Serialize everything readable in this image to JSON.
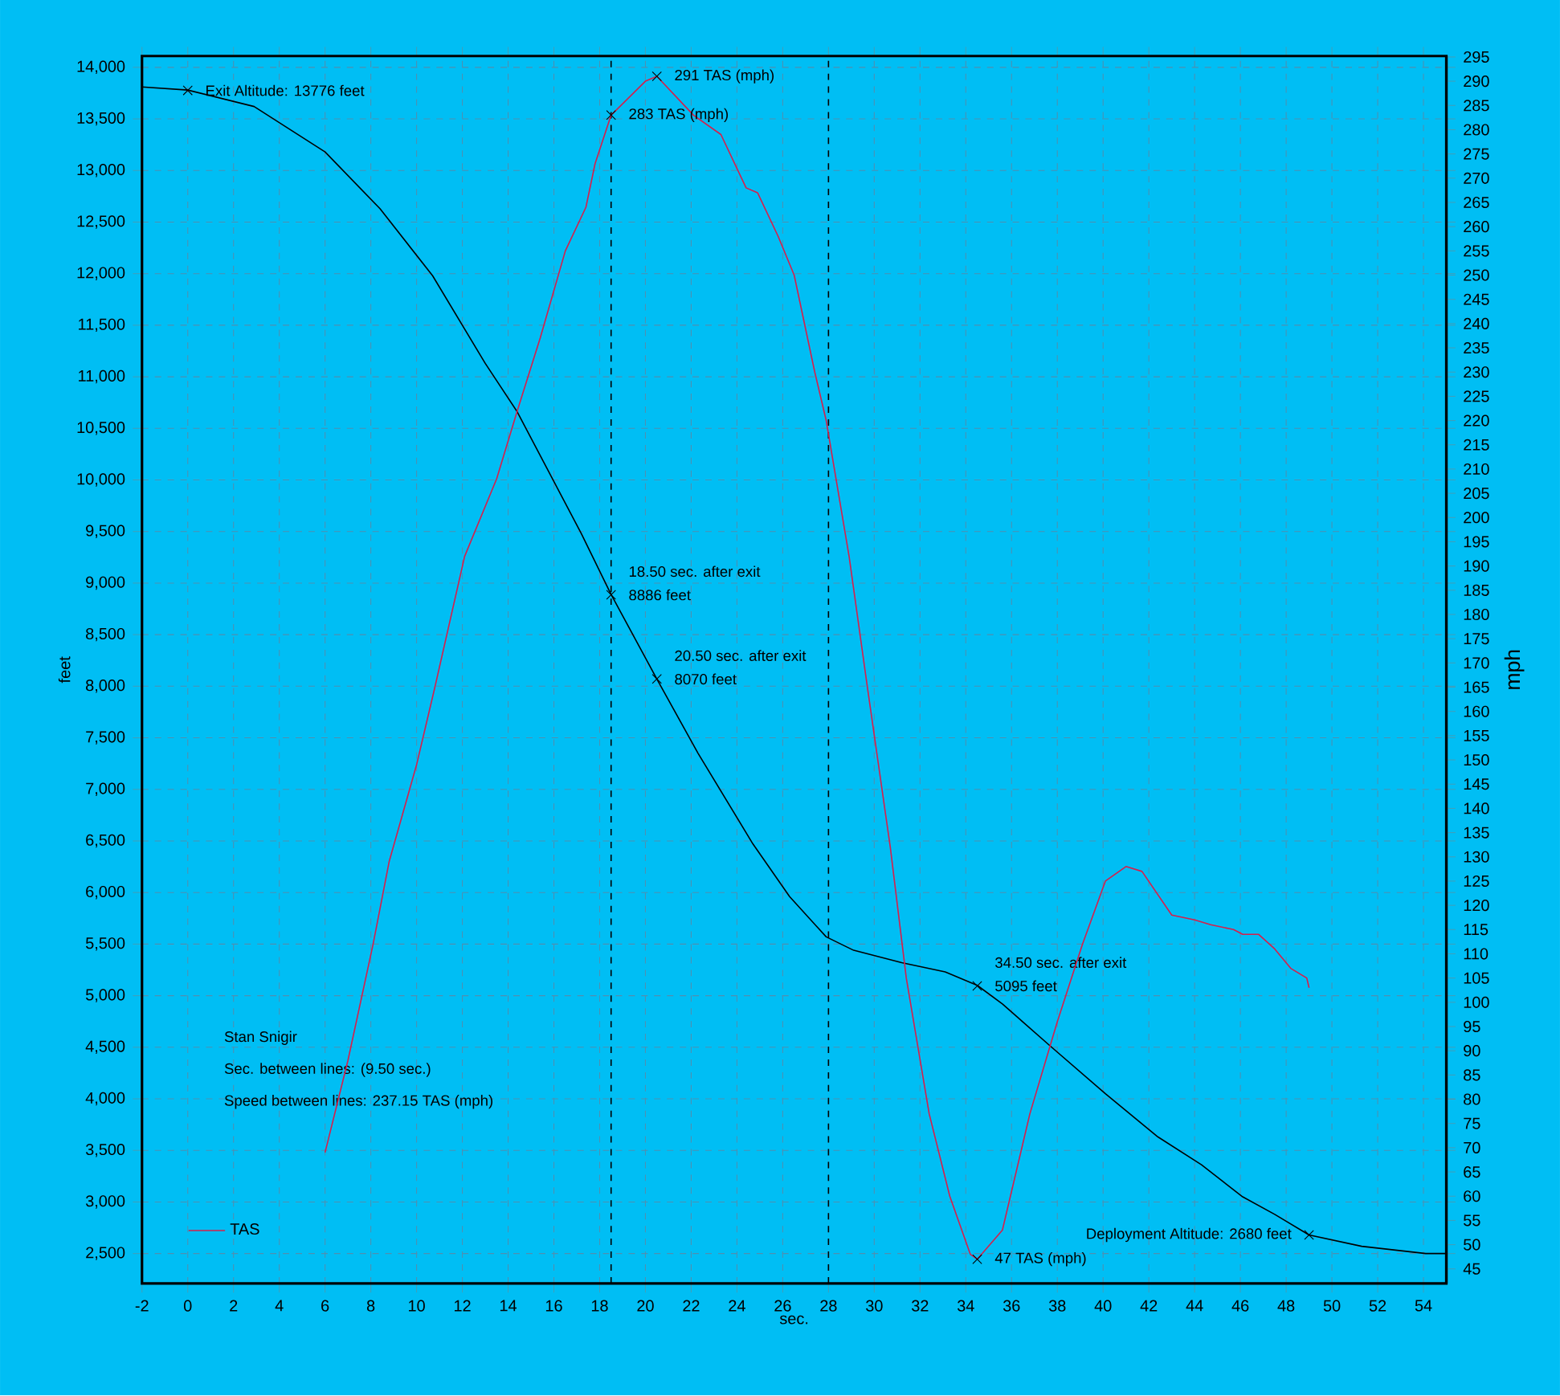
{
  "chart_data": {
    "type": "line",
    "xlabel": "sec.",
    "ylabel": "feet",
    "y2label": "mph",
    "xlim": [
      -2,
      55
    ],
    "ylim": [
      2210,
      14110
    ],
    "y2lim": [
      42,
      295.2
    ],
    "xticks": [
      -2,
      0,
      2,
      4,
      6,
      8,
      10,
      12,
      14,
      16,
      18,
      20,
      22,
      24,
      26,
      28,
      30,
      32,
      34,
      36,
      38,
      40,
      42,
      44,
      46,
      48,
      50,
      52,
      54
    ],
    "yticks": [
      {
        "value": 2500,
        "label": "2,500"
      },
      {
        "value": 3000,
        "label": "3,000"
      },
      {
        "value": 3500,
        "label": "3,500"
      },
      {
        "value": 4000,
        "label": "4,000"
      },
      {
        "value": 4500,
        "label": "4,500"
      },
      {
        "value": 5000,
        "label": "5,000"
      },
      {
        "value": 5500,
        "label": "5,500"
      },
      {
        "value": 6000,
        "label": "6,000"
      },
      {
        "value": 6500,
        "label": "6,500"
      },
      {
        "value": 7000,
        "label": "7,000"
      },
      {
        "value": 7500,
        "label": "7,500"
      },
      {
        "value": 8000,
        "label": "8,000"
      },
      {
        "value": 8500,
        "label": "8,500"
      },
      {
        "value": 9000,
        "label": "9,000"
      },
      {
        "value": 9500,
        "label": "9,500"
      },
      {
        "value": 10000,
        "label": "10,000"
      },
      {
        "value": 10500,
        "label": "10,500"
      },
      {
        "value": 11000,
        "label": "11,000"
      },
      {
        "value": 11500,
        "label": "11,500"
      },
      {
        "value": 12000,
        "label": "12,000"
      },
      {
        "value": 12500,
        "label": "12,500"
      },
      {
        "value": 13000,
        "label": "13,000"
      },
      {
        "value": 13500,
        "label": "13,500"
      },
      {
        "value": 14000,
        "label": "14,000"
      }
    ],
    "y2ticks": [
      45,
      50,
      55,
      60,
      65,
      70,
      75,
      80,
      85,
      90,
      95,
      100,
      105,
      110,
      115,
      120,
      125,
      130,
      135,
      140,
      145,
      150,
      155,
      160,
      165,
      170,
      175,
      180,
      185,
      190,
      195,
      200,
      205,
      210,
      215,
      220,
      225,
      230,
      235,
      240,
      245,
      250,
      255,
      260,
      265,
      270,
      275,
      280,
      285,
      290,
      295
    ],
    "grid": true,
    "legend": "bottom left",
    "line_style": "solid",
    "series": [
      {
        "color": "#000000",
        "x": [
          -2,
          0,
          2.9,
          6.0,
          8.4,
          10.7,
          13.0,
          14.4,
          17.2,
          18.5,
          20.5,
          22.3,
          24.7,
          26.3,
          27.9,
          29.1,
          31.2,
          33.1,
          34.5,
          35.6,
          37.7,
          40.1,
          42.4,
          44.3,
          46.1,
          47.5,
          49,
          51.3,
          54.1,
          55
        ],
        "values": [
          13810,
          13780,
          13620,
          13180,
          12630,
          11980,
          11130,
          10660,
          9480,
          8890,
          8070,
          7350,
          6470,
          5960,
          5570,
          5440,
          5320,
          5230,
          5100,
          4920,
          4510,
          4050,
          3630,
          3360,
          3050,
          2880,
          2680,
          2570,
          2500,
          2500
        ]
      },
      {
        "name": "TAS",
        "axis": "y2",
        "color": "#d81e4a",
        "x": [
          6.0,
          7.0,
          8.1,
          8.8,
          10.0,
          10.8,
          12.1,
          13.5,
          14.4,
          15.4,
          16.5,
          17.4,
          17.8,
          18.5,
          20.0,
          20.5,
          22.1,
          23.3,
          24.4,
          24.9,
          25.8,
          26.5,
          27.4,
          27.9,
          28.9,
          29.7,
          30.7,
          31.4,
          32.4,
          33.3,
          34.2,
          34.5,
          35.6,
          36.8,
          38.0,
          39.1,
          40.1,
          41.0,
          41.7,
          43.0,
          44.0,
          44.7,
          45.7,
          46.1,
          46.8,
          47.5,
          48.2,
          48.9,
          49.0
        ],
        "values": [
          69,
          88,
          112,
          129,
          149,
          165,
          192,
          208,
          222,
          237,
          255,
          264,
          273,
          283,
          290,
          291,
          283,
          279,
          268,
          267,
          258,
          250,
          230,
          220,
          192,
          165,
          132,
          105,
          77,
          60,
          48,
          47,
          53,
          77,
          96,
          112,
          125,
          128,
          127,
          118,
          117,
          116,
          115,
          114,
          114,
          111,
          107,
          105,
          103
        ]
      },
      {
        "type": "scatter",
        "marker": "cross",
        "color": "#000000",
        "x": [
          0,
          18.5,
          20.5,
          34.5,
          49
        ],
        "values": [
          13776,
          8886,
          8070,
          5095,
          2680
        ],
        "value_labels": [
          "Exit Altitude: 13776 feet",
          "8886 feet",
          "8070 feet",
          "5095 feet",
          "Deployment Altitude: 2680 feet"
        ]
      },
      {
        "type": "scatter",
        "marker": "cross",
        "axis": "y2",
        "color": "#000000",
        "x": [
          18.5,
          20.5,
          34.5
        ],
        "values": [
          283,
          291,
          47
        ],
        "value_labels": [
          "283 TAS (mph)",
          "291 TAS (mph)",
          "47 TAS (mph)"
        ]
      }
    ],
    "ref_lines": [
      {
        "axis": "x",
        "value": 18.5,
        "color": "#000000",
        "line_style": "dashed"
      },
      {
        "axis": "x",
        "value": 28,
        "color": "#000000",
        "line_style": "dashed"
      }
    ],
    "annotations": [
      {
        "text": "18.50 sec. after exit",
        "x": 18.5,
        "y": 8886
      },
      {
        "text": "20.50 sec. after exit",
        "x": 20.5,
        "y": 8070
      },
      {
        "text": "34.50 sec. after exit",
        "x": 34.5,
        "y": 5095
      },
      "Stan Snigir",
      "Sec. between lines: (9.50 sec.)",
      "Speed between lines: 237.15 TAS (mph)"
    ]
  }
}
